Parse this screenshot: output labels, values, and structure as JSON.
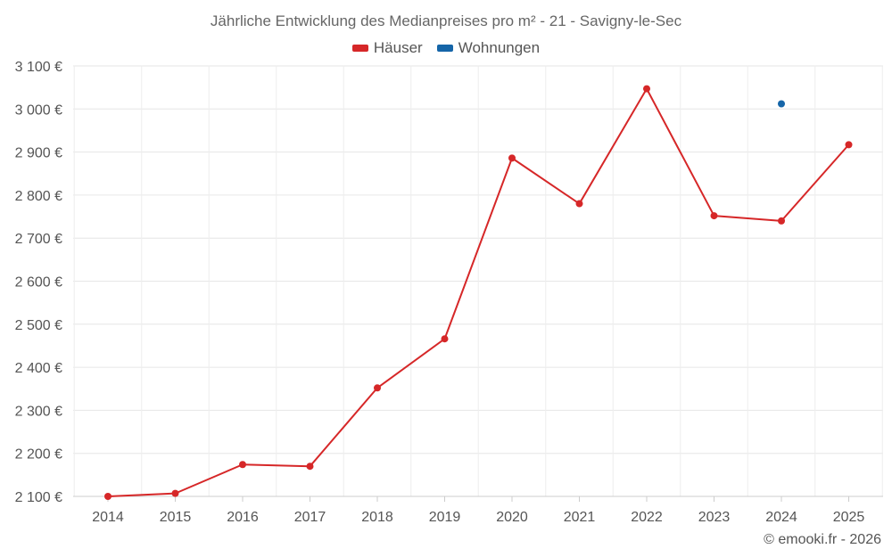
{
  "chart_data": {
    "type": "line",
    "title": "Jährliche Entwicklung des Medianpreises pro m² - 21 - Savigny-le-Sec",
    "xlabel": "",
    "ylabel": "",
    "categories": [
      "2014",
      "2015",
      "2016",
      "2017",
      "2018",
      "2019",
      "2020",
      "2021",
      "2022",
      "2023",
      "2024",
      "2025"
    ],
    "series": [
      {
        "name": "Häuser",
        "color": "#d62728",
        "values": [
          2100,
          2107,
          2174,
          2170,
          2352,
          2466,
          2886,
          2780,
          3047,
          2752,
          2740,
          2917
        ]
      },
      {
        "name": "Wohnungen",
        "color": "#1565a8",
        "values": [
          null,
          null,
          null,
          null,
          null,
          null,
          null,
          null,
          null,
          null,
          3012,
          null
        ]
      }
    ],
    "ylim": [
      2100,
      3100
    ],
    "yticks": [
      2100,
      2200,
      2300,
      2400,
      2500,
      2600,
      2700,
      2800,
      2900,
      3000,
      3100
    ],
    "ytick_labels": [
      "2 100 €",
      "2 200 €",
      "2 300 €",
      "2 400 €",
      "2 500 €",
      "2 600 €",
      "2 700 €",
      "2 800 €",
      "2 900 €",
      "3 000 €",
      "3 100 €"
    ],
    "grid": true,
    "legend_position": "top-center"
  },
  "credit": "© emooki.fr - 2026"
}
